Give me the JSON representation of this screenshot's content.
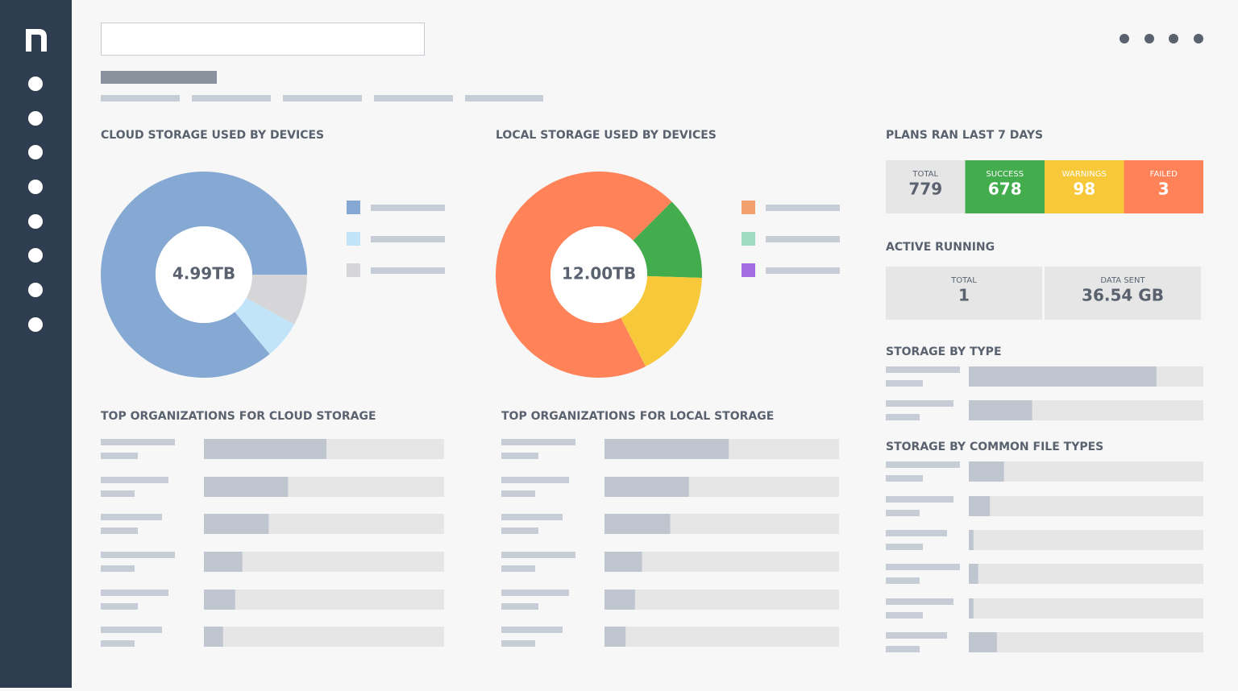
{
  "cloud_storage": {
    "title": "CLOUD STORAGE USED BY DEVICES",
    "center_label": "4.99TB",
    "slices": [
      {
        "color": "#85a9d3",
        "value": 86
      },
      {
        "color": "#c2e4f8",
        "value": 6
      },
      {
        "color": "#d6d6d8",
        "value": 8
      }
    ],
    "legend_colors": [
      "#85a9d3",
      "#c2e4f8",
      "#d6d6d8"
    ]
  },
  "local_storage": {
    "title": "LOCAL STORAGE USED BY DEVICES",
    "center_label": "12.00TB",
    "slices": [
      {
        "color": "#ff8258",
        "value": 70
      },
      {
        "color": "#43ad4e",
        "value": 13
      },
      {
        "color": "#f7c93a",
        "value": 17
      }
    ],
    "legend_colors": [
      "#f2a06e",
      "#9edbbf",
      "#a46ee0"
    ]
  },
  "plans": {
    "title": "PLANS RAN LAST 7 DAYS",
    "stats": [
      {
        "label": "TOTAL",
        "value": 779,
        "color": "#e6e6e6"
      },
      {
        "label": "SUCCESS",
        "value": 678,
        "color": "#43ad4e"
      },
      {
        "label": "WARNINGS",
        "value": 98,
        "color": "#f7c93a"
      },
      {
        "label": "FAILED",
        "value": 3,
        "color": "#ff8258"
      }
    ]
  },
  "active_running": {
    "title": "ACTIVE RUNNING",
    "stats": [
      {
        "label": "TOTAL",
        "value": 1
      },
      {
        "label": "DATA SENT",
        "value": "36.54 GB"
      }
    ]
  },
  "top_cloud": {
    "title": "TOP ORGANIZATIONS FOR CLOUD STORAGE",
    "values": [
      51,
      35,
      27,
      16,
      13,
      8
    ]
  },
  "top_local": {
    "title": "TOP ORGANIZATIONS FOR LOCAL STORAGE",
    "values": [
      53,
      36,
      28,
      16,
      13,
      9
    ]
  },
  "storage_by_type": {
    "title": "STORAGE BY TYPE",
    "values": [
      80,
      27
    ]
  },
  "file_types": {
    "title": "STORAGE BY COMMON FILE TYPES",
    "values": [
      15,
      9,
      2,
      4,
      2,
      12
    ]
  }
}
